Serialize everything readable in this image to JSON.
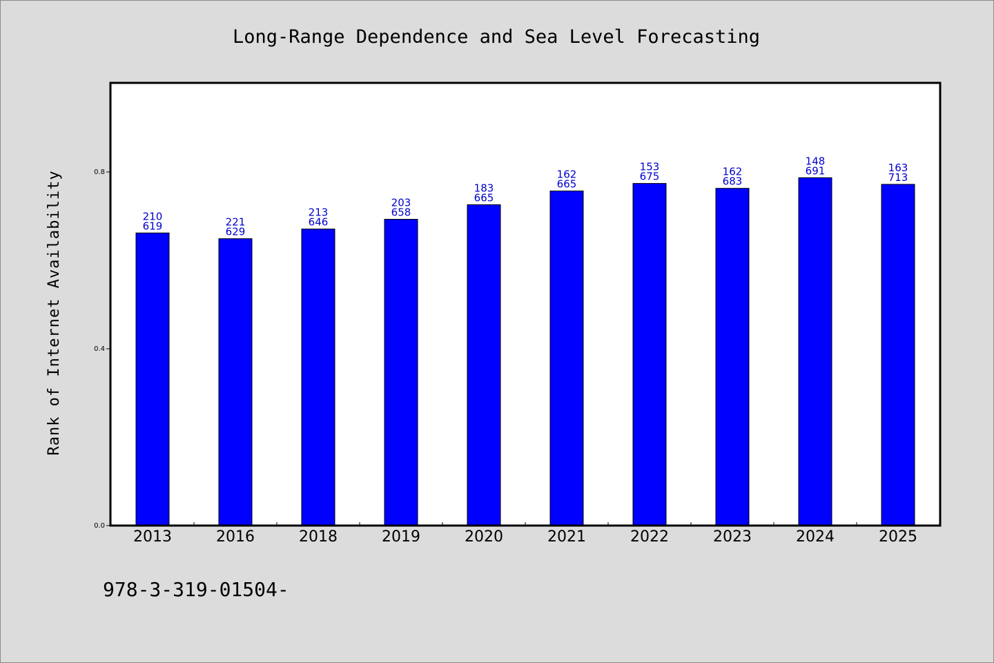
{
  "chart_data": {
    "type": "bar",
    "title": "Long-Range Dependence and Sea Level Forecasting",
    "xlabel": "",
    "ylabel": "Rank of Internet Availability",
    "categories": [
      "2013",
      "2016",
      "2018",
      "2019",
      "2020",
      "2021",
      "2022",
      "2023",
      "2024",
      "2025"
    ],
    "values": [
      0.662,
      0.649,
      0.671,
      0.693,
      0.726,
      0.757,
      0.774,
      0.763,
      0.787,
      0.772
    ],
    "labels_top": [
      "210",
      "221",
      "213",
      "203",
      "183",
      "162",
      "153",
      "162",
      "148",
      "163"
    ],
    "labels_bottom": [
      "619",
      "629",
      "646",
      "658",
      "665",
      "665",
      "675",
      "683",
      "691",
      "713"
    ],
    "ylim": [
      0.0,
      1.0
    ],
    "yticks": [
      "0.0",
      "0.4",
      "0.8"
    ],
    "bar_color": "#0000ff",
    "label_color": "#0000cc",
    "grid": false,
    "legend": "none"
  },
  "footnote": "978-3-319-01504-"
}
